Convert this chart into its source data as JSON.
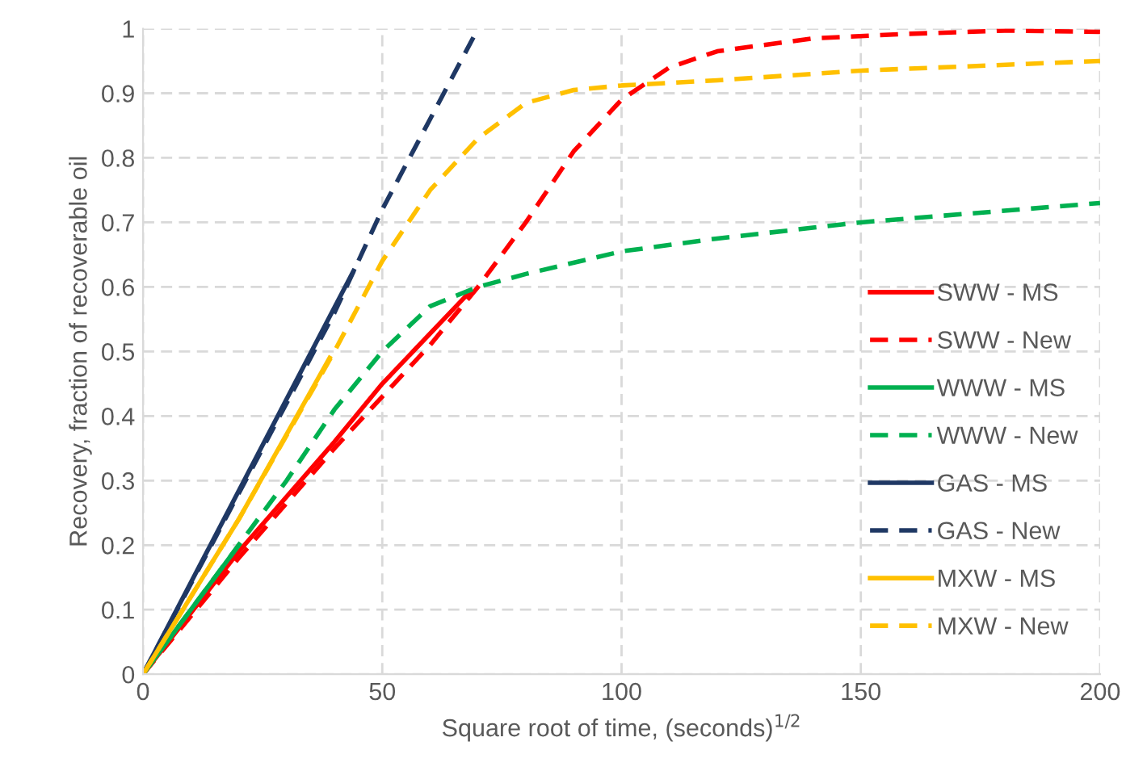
{
  "chart_data": {
    "type": "line",
    "xlabel": "Square root of time, (seconds)$^{1/2}$",
    "ylabel": "Recovery, fraction of recoverable oil",
    "xlim": [
      0,
      200
    ],
    "xticks": [
      0,
      50,
      100,
      150,
      200
    ],
    "ylim": [
      0,
      1
    ],
    "yticks": [
      0,
      0.1,
      0.2,
      0.3,
      0.4,
      0.5,
      0.6,
      0.7,
      0.8,
      0.9,
      1
    ],
    "grid": true,
    "legend": "right",
    "marker": "none",
    "series": [
      {
        "name": "SWW - MS",
        "color": "#ff0000",
        "line_style": "solid",
        "x": [
          0,
          20,
          40,
          50,
          68
        ],
        "values": [
          0,
          0.19,
          0.36,
          0.45,
          0.59
        ]
      },
      {
        "name": "SWW - New",
        "color": "#ff0000",
        "line_style": "dashed",
        "x": [
          0,
          20,
          40,
          50,
          60,
          70,
          80,
          90,
          100,
          110,
          120,
          140,
          160,
          180,
          200
        ],
        "values": [
          0,
          0.18,
          0.35,
          0.43,
          0.51,
          0.6,
          0.7,
          0.81,
          0.89,
          0.94,
          0.965,
          0.985,
          0.992,
          0.997,
          0.995
        ]
      },
      {
        "name": "WWW - MS",
        "color": "#00b050",
        "line_style": "solid",
        "x": [
          0,
          20
        ],
        "values": [
          0,
          0.2
        ]
      },
      {
        "name": "WWW - New",
        "color": "#00b050",
        "line_style": "dashed",
        "x": [
          0,
          10,
          20,
          30,
          40,
          50,
          60,
          70,
          80,
          100,
          120,
          150,
          200
        ],
        "values": [
          0,
          0.1,
          0.2,
          0.3,
          0.41,
          0.5,
          0.57,
          0.6,
          0.62,
          0.655,
          0.675,
          0.7,
          0.73
        ]
      },
      {
        "name": "GAS - MS",
        "color": "#1f3864",
        "line_style": "solid",
        "x": [
          0,
          44
        ],
        "values": [
          0,
          0.625
        ]
      },
      {
        "name": "GAS - New",
        "color": "#1f3864",
        "line_style": "dashed",
        "x": [
          0,
          20,
          40,
          50,
          60,
          70
        ],
        "values": [
          0,
          0.28,
          0.56,
          0.72,
          0.86,
          1.0
        ]
      },
      {
        "name": "MXW - MS",
        "color": "#ffc000",
        "line_style": "solid",
        "x": [
          0,
          20,
          39
        ],
        "values": [
          0,
          0.24,
          0.49
        ]
      },
      {
        "name": "MXW - New",
        "color": "#ffc000",
        "line_style": "dashed",
        "x": [
          0,
          20,
          40,
          50,
          60,
          70,
          80,
          90,
          100,
          120,
          150,
          200
        ],
        "values": [
          0,
          0.24,
          0.5,
          0.64,
          0.75,
          0.83,
          0.885,
          0.905,
          0.912,
          0.92,
          0.935,
          0.95
        ]
      }
    ]
  }
}
